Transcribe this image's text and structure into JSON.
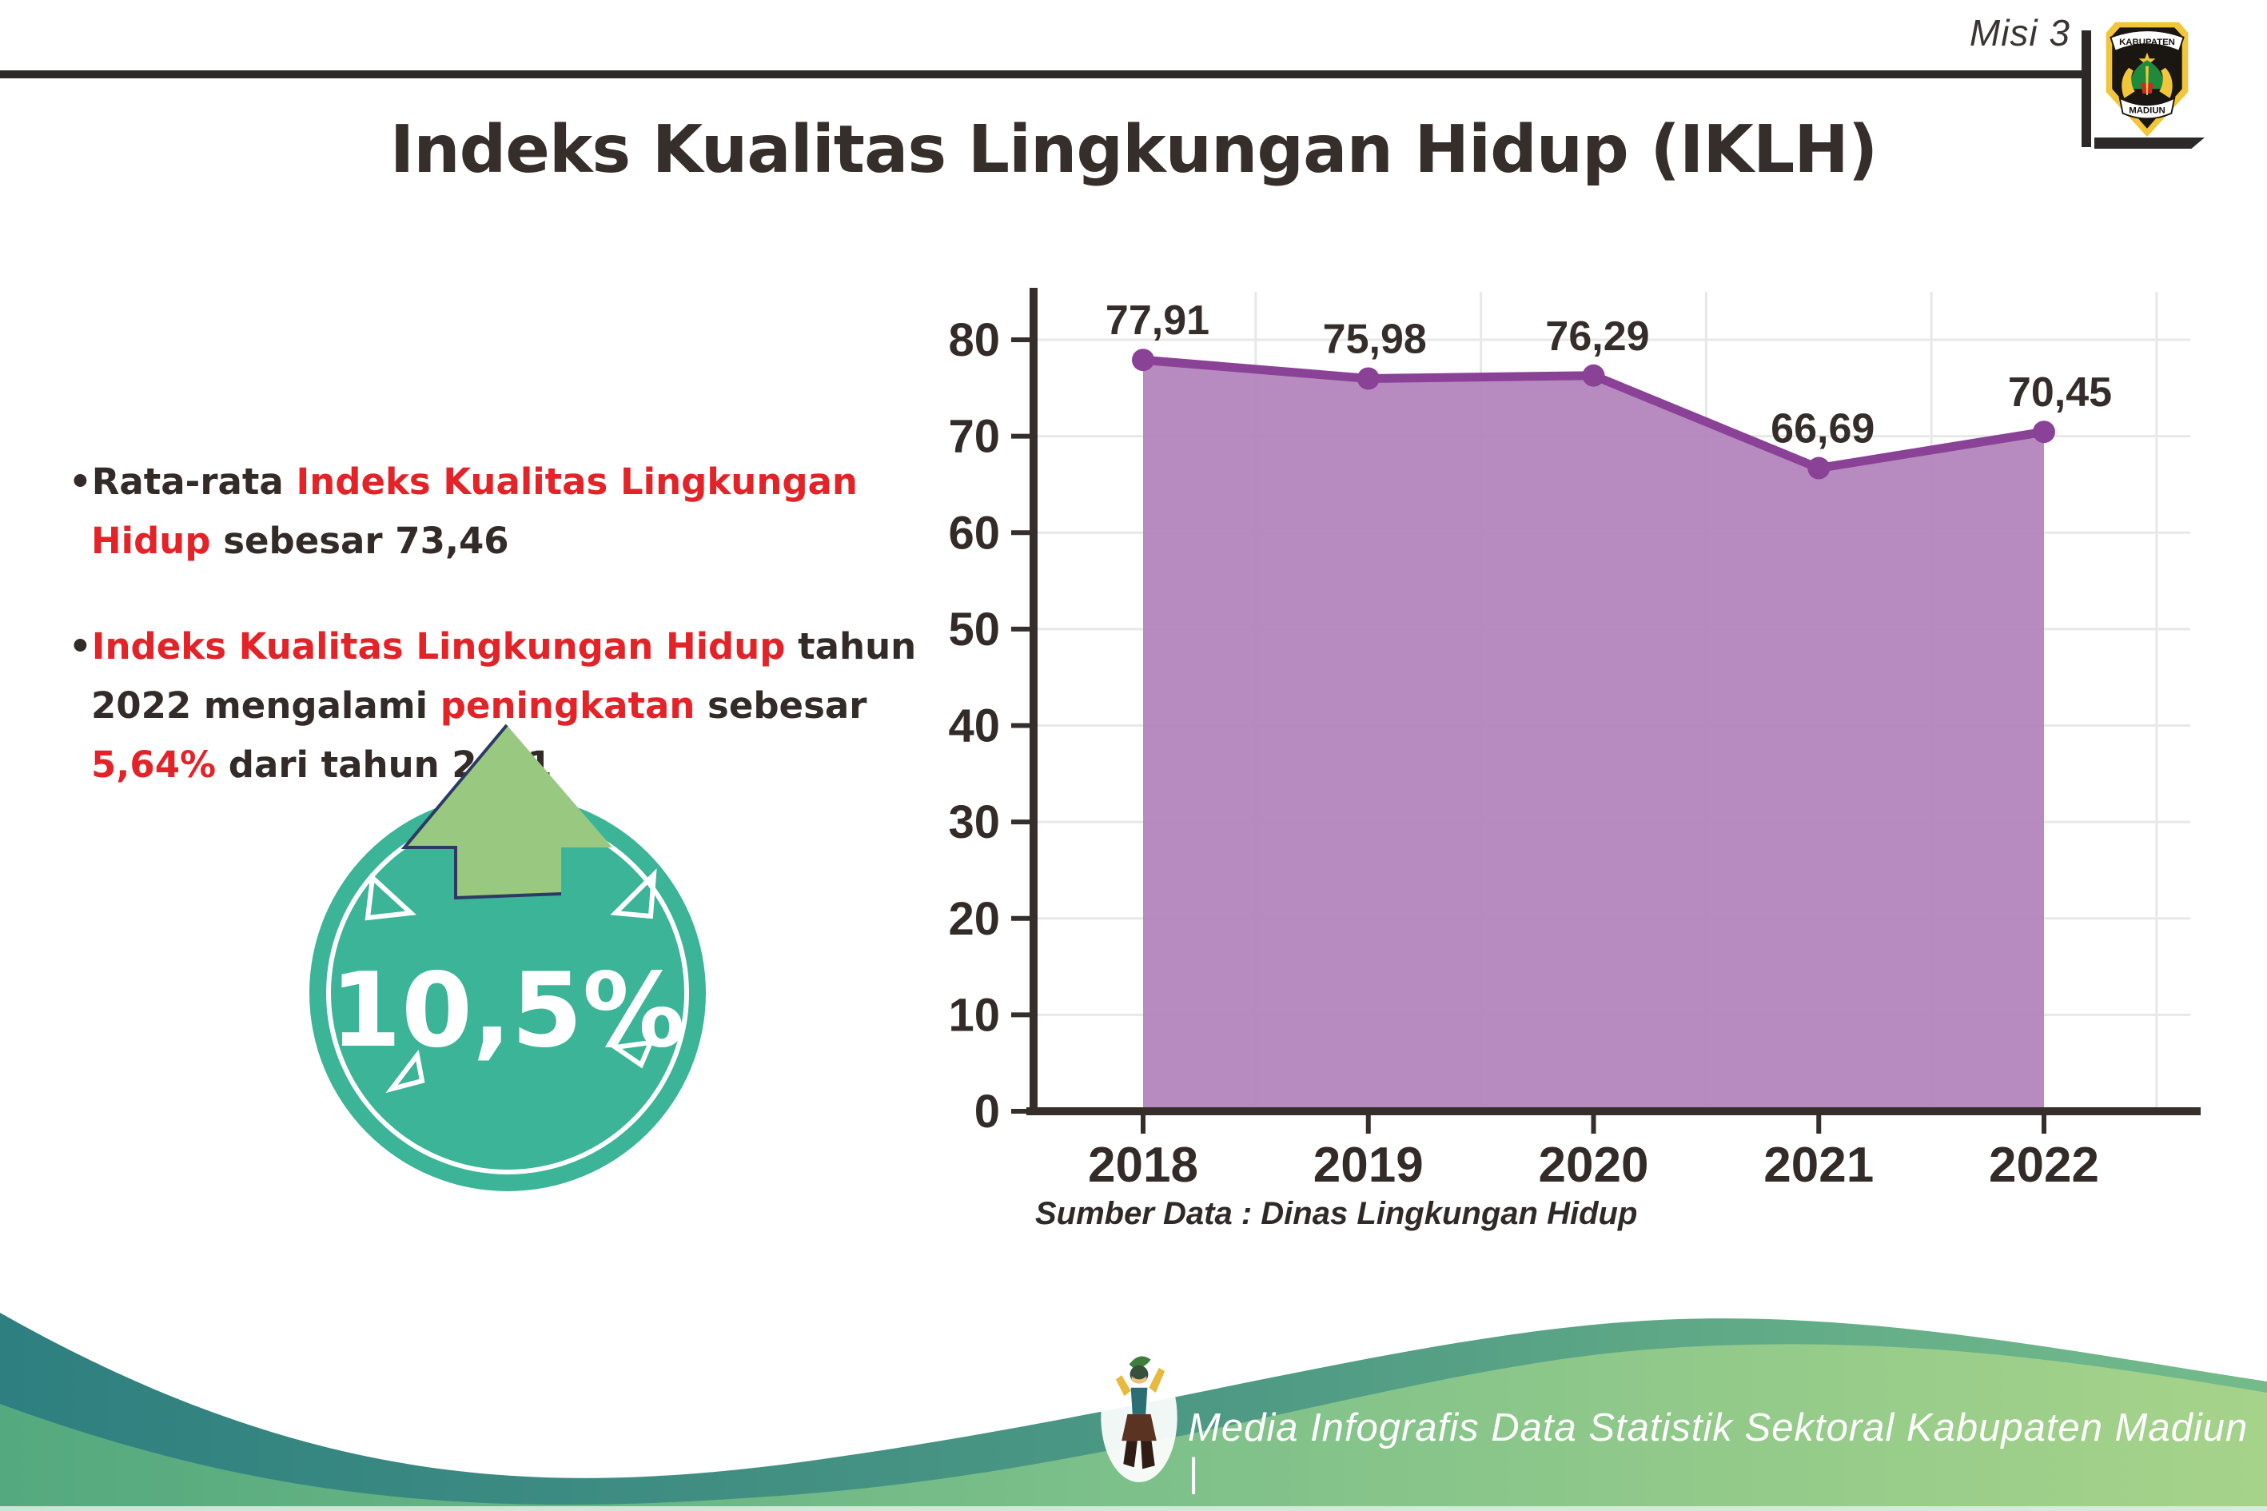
{
  "header": {
    "misi_label": "Misi 3"
  },
  "logo": {
    "top_text": "KABUPATEN",
    "bottom_text": "MADIUN"
  },
  "title": "Indeks Kualitas Lingkungan Hidup (IKLH)",
  "bullets": {
    "item1": {
      "segments": [
        {
          "text": "Rata-rata ",
          "style": "dark"
        },
        {
          "text": "Indeks Kualitas Lingkungan Hidup",
          "style": "red"
        },
        {
          "text": " sebesar 73,46",
          "style": "dark"
        }
      ]
    },
    "item2": {
      "segments": [
        {
          "text": "Indeks Kualitas Lingkungan Hidup",
          "style": "red"
        },
        {
          "text": " tahun 2022 mengalami ",
          "style": "dark"
        },
        {
          "text": "peningkatan",
          "style": "red"
        },
        {
          "text": " sebesar ",
          "style": "dark"
        },
        {
          "text": "5,64%",
          "style": "red"
        },
        {
          "text": " dari tahun 2021",
          "style": "dark"
        }
      ]
    }
  },
  "badge": {
    "value": "10,5%",
    "circle_color": "#3cb497",
    "arrow_color": "#99c981"
  },
  "chart_data": {
    "type": "area",
    "title": "",
    "xlabel": "",
    "ylabel": "",
    "categories": [
      "2018",
      "2019",
      "2020",
      "2021",
      "2022"
    ],
    "series": [
      {
        "name": "IKLH",
        "values": [
          77.91,
          75.98,
          76.29,
          66.69,
          70.45
        ]
      }
    ],
    "value_labels": [
      "77,91",
      "75,98",
      "76,29",
      "66,69",
      "70,45"
    ],
    "y_ticks": [
      0,
      10,
      20,
      30,
      40,
      50,
      60,
      70,
      80
    ],
    "ylim": [
      0,
      83
    ],
    "grid": true,
    "legend": "none",
    "area_color": "#b384bd",
    "line_color": "#8a4297"
  },
  "source_note": "Sumber Data : Dinas Lingkungan Hidup",
  "footer": {
    "text": "Media Infografis Data Statistik Sektoral Kabupaten Madiun |"
  }
}
